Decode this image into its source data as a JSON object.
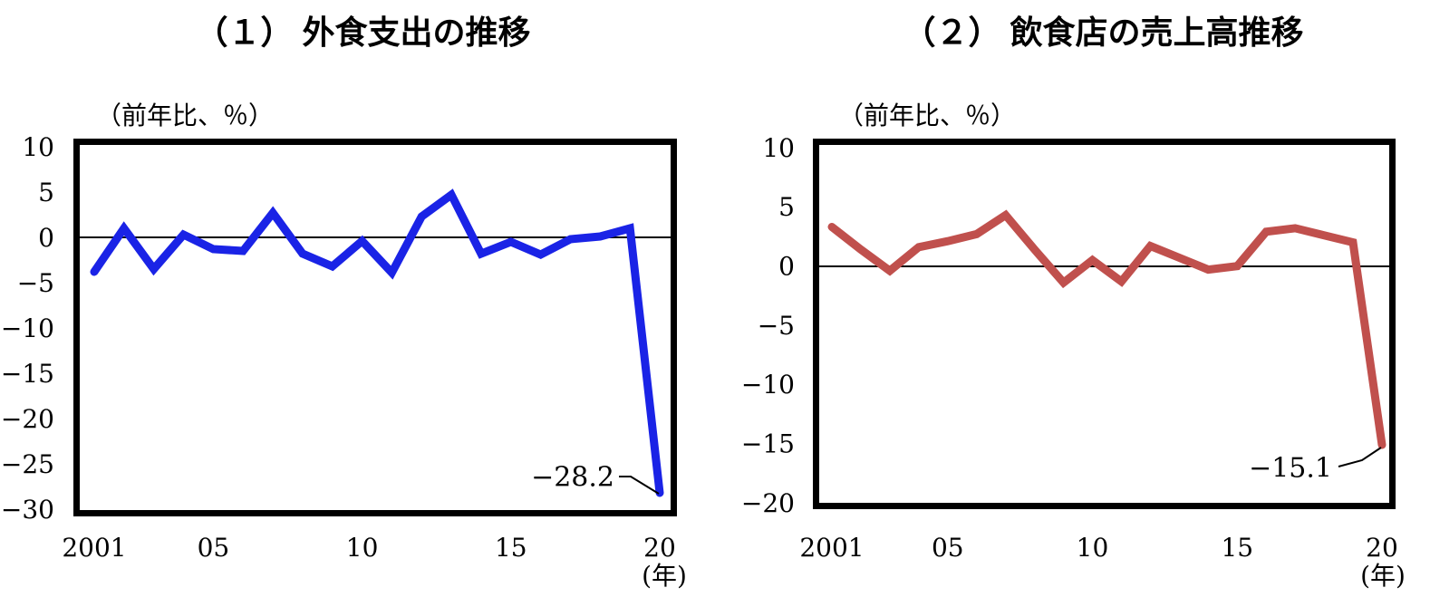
{
  "chart_data": [
    {
      "type": "line",
      "title": "（１） 外食支出の推移",
      "unit_label": "（前年比、％）",
      "color": "#1a23e6",
      "zero_line": true,
      "grid": false,
      "x": [
        2001,
        2002,
        2003,
        2004,
        2005,
        2006,
        2007,
        2008,
        2009,
        2010,
        2011,
        2012,
        2013,
        2014,
        2015,
        2016,
        2017,
        2018,
        2019,
        2020
      ],
      "values": [
        -3.8,
        1.0,
        -3.5,
        0.3,
        -1.3,
        -1.5,
        2.7,
        -1.8,
        -3.2,
        -0.4,
        -3.9,
        2.3,
        4.7,
        -1.8,
        -0.5,
        -1.9,
        -0.2,
        0.1,
        1.0,
        -28.2
      ],
      "ylim": [
        -30,
        10
      ],
      "y_tick_values": [
        10,
        5,
        0,
        -5,
        -10,
        -15,
        -20,
        -25,
        -30
      ],
      "y_tick_labels": [
        "10",
        "5",
        "0",
        "−5",
        "−10",
        "−15",
        "−20",
        "−25",
        "−30"
      ],
      "x_tick_years": [
        2001,
        2005,
        2010,
        2015,
        2020
      ],
      "x_tick_labels": [
        "2001",
        "05",
        "10",
        "15",
        "20"
      ],
      "x_axis_suffix": "(年)",
      "annotation": {
        "text": "−28.2",
        "value": -28.2,
        "year": 2020
      }
    },
    {
      "type": "line",
      "title": "（２） 飲食店の売上高推移",
      "unit_label": "（前年比、％）",
      "color": "#c0504d",
      "zero_line": true,
      "grid": false,
      "x": [
        2001,
        2002,
        2003,
        2004,
        2005,
        2006,
        2007,
        2008,
        2009,
        2010,
        2011,
        2012,
        2013,
        2014,
        2015,
        2016,
        2017,
        2018,
        2019,
        2020
      ],
      "values": [
        3.3,
        1.4,
        -0.4,
        1.6,
        2.1,
        2.7,
        4.3,
        1.4,
        -1.4,
        0.5,
        -1.3,
        1.7,
        0.7,
        -0.3,
        0.0,
        2.9,
        3.2,
        2.6,
        2.0,
        -15.1
      ],
      "ylim": [
        -20,
        10
      ],
      "y_tick_values": [
        10,
        5,
        0,
        -5,
        -10,
        -15,
        -20
      ],
      "y_tick_labels": [
        "10",
        "5",
        "0",
        "−5",
        "−10",
        "−15",
        "−20"
      ],
      "x_tick_years": [
        2001,
        2005,
        2010,
        2015,
        2020
      ],
      "x_tick_labels": [
        "2001",
        "05",
        "10",
        "15",
        "20"
      ],
      "x_axis_suffix": "(年)",
      "annotation": {
        "text": "−15.1",
        "value": -15.1,
        "year": 2020
      }
    }
  ]
}
